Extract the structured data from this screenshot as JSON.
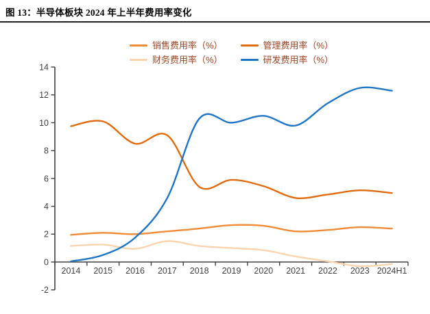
{
  "title": "图 13：半导体板块 2024 年上半年费用率变化",
  "colors": {
    "axis": "#404040",
    "tick_label": "#3f3f3f",
    "legend_text": "#9E4423",
    "title_rule": "#202020"
  },
  "chart_data": {
    "type": "line",
    "title": "半导体板块 2024 年上半年费用率变化",
    "categories": [
      "2014",
      "2015",
      "2016",
      "2017",
      "2018",
      "2019",
      "2020",
      "2021",
      "2022",
      "2023",
      "2024H1"
    ],
    "series": [
      {
        "key": "sales",
        "name": "销售费用率（%）",
        "color": "#F18A34",
        "values": [
          1.95,
          2.1,
          2.0,
          2.2,
          2.4,
          2.65,
          2.6,
          2.2,
          2.3,
          2.5,
          2.4
        ]
      },
      {
        "key": "admin",
        "name": "管理费用率（%）",
        "color": "#E36A0C",
        "values": [
          9.75,
          10.1,
          8.5,
          9.1,
          5.4,
          5.9,
          5.45,
          4.6,
          4.85,
          5.15,
          4.95
        ]
      },
      {
        "key": "finance",
        "name": "财务费用率（%）",
        "color": "#F9D4AD",
        "values": [
          1.15,
          1.25,
          0.95,
          1.5,
          1.15,
          1.0,
          0.85,
          0.4,
          0.05,
          -0.3,
          -0.15
        ]
      },
      {
        "key": "rnd",
        "name": "研发费用率（%）",
        "color": "#1E74C5",
        "values": [
          0.05,
          0.5,
          1.75,
          4.6,
          10.3,
          10.0,
          10.5,
          9.8,
          11.4,
          12.5,
          12.3
        ]
      }
    ],
    "xlabel": "",
    "ylabel": "",
    "ylim": [
      -2,
      14
    ],
    "ytick_step": 2,
    "grid": false,
    "line_style": "smooth",
    "legend_position": "top-center",
    "legend_columns": 2
  }
}
